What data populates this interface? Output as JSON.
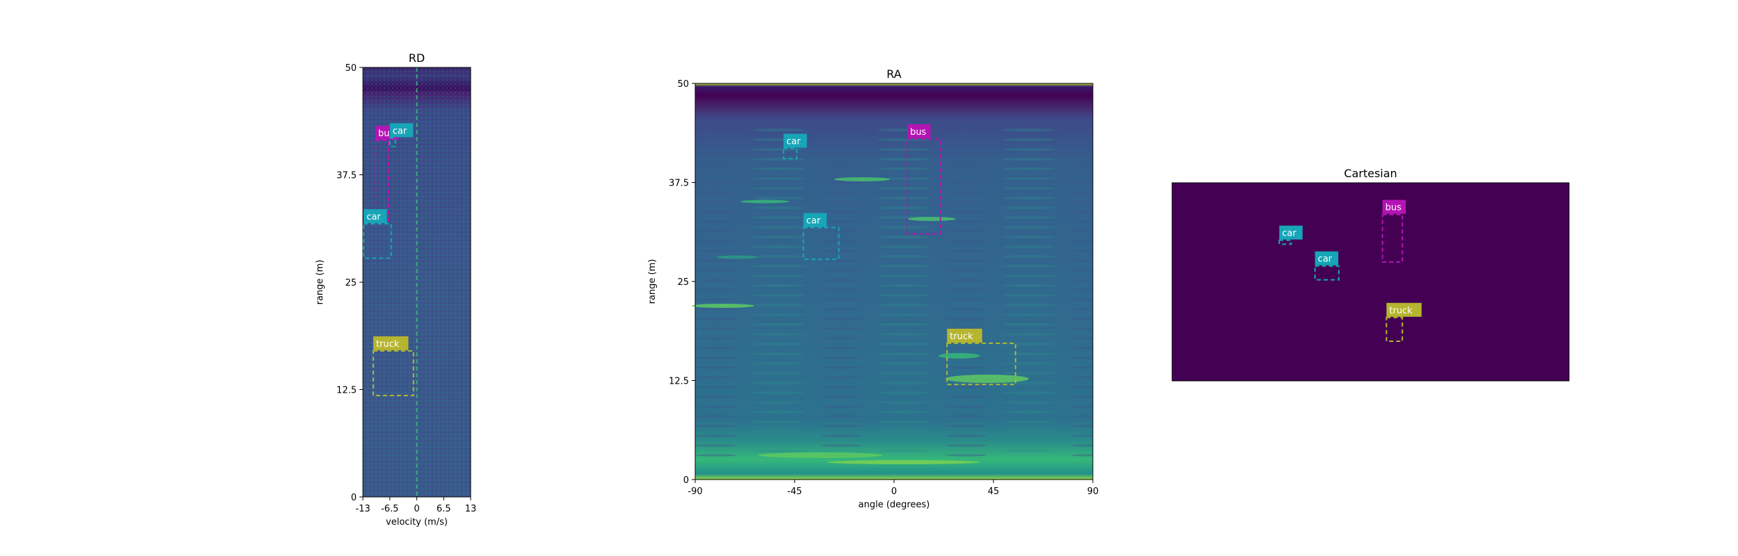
{
  "chart_data": [
    {
      "type": "heatmap",
      "title": "RD",
      "xlabel": "velocity (m/s)",
      "ylabel": "range (m)",
      "xlim": [
        -13,
        13
      ],
      "ylim": [
        0,
        50
      ],
      "xticks": [
        "-13",
        "-6.5",
        "0",
        "6.5",
        "13"
      ],
      "yticks": [
        "0",
        "12.5",
        "25",
        "37.5",
        "50"
      ],
      "colormap": "viridis",
      "detections": [
        {
          "label": "bus",
          "color": "#b414b4",
          "x0": -10,
          "x1": -6.8,
          "y0": 32,
          "y1": 41.5
        },
        {
          "label": "car",
          "color": "#17a5b8",
          "x0": -6.5,
          "x1": -5.2,
          "y0": 40.8,
          "y1": 41.8
        },
        {
          "label": "car",
          "color": "#17a5b8",
          "x0": -12.8,
          "x1": -6.2,
          "y0": 27.8,
          "y1": 31.8
        },
        {
          "label": "truck",
          "color": "#b5b530",
          "x0": -10.5,
          "x1": -0.8,
          "y0": 11.8,
          "y1": 17
        }
      ]
    },
    {
      "type": "heatmap",
      "title": "RA",
      "xlabel": "angle (degrees)",
      "ylabel": "range (m)",
      "xlim": [
        -90,
        90
      ],
      "ylim": [
        0,
        50
      ],
      "xticks": [
        "-90",
        "-45",
        "0",
        "45",
        "90"
      ],
      "yticks": [
        "0",
        "12.5",
        "25",
        "37.5",
        "50"
      ],
      "colormap": "viridis",
      "detections": [
        {
          "label": "car",
          "color": "#17a5b8",
          "x0": -50,
          "x1": -44,
          "y0": 40.5,
          "y1": 41.8
        },
        {
          "label": "bus",
          "color": "#b414b4",
          "x0": 6,
          "x1": 21,
          "y0": 31,
          "y1": 43
        },
        {
          "label": "car",
          "color": "#17a5b8",
          "x0": -41,
          "x1": -25,
          "y0": 27.8,
          "y1": 31.8
        },
        {
          "label": "truck",
          "color": "#b5b530",
          "x0": 24,
          "x1": 55,
          "y0": 12,
          "y1": 17.2
        }
      ]
    },
    {
      "type": "heatmap",
      "title": "Cartesian",
      "background": "#440154",
      "detections": [
        {
          "label": "car",
          "color": "#17a5b8",
          "x0": 0.27,
          "x1": 0.3,
          "y0": 0.69,
          "y1": 0.71
        },
        {
          "label": "bus",
          "color": "#b414b4",
          "x0": 0.53,
          "x1": 0.58,
          "y0": 0.6,
          "y1": 0.84
        },
        {
          "label": "car",
          "color": "#17a5b8",
          "x0": 0.36,
          "x1": 0.42,
          "y0": 0.51,
          "y1": 0.58
        },
        {
          "label": "truck",
          "color": "#b5b530",
          "x0": 0.54,
          "x1": 0.58,
          "y0": 0.2,
          "y1": 0.32
        }
      ]
    }
  ]
}
